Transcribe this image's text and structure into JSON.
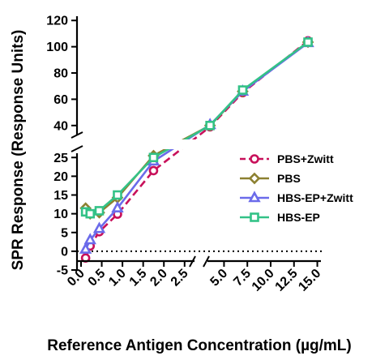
{
  "chart_data": {
    "type": "line",
    "xlabel": "Reference Antigen Concentration (µg/mL)",
    "ylabel": "SPR Response (Response Units)",
    "x_axis": {
      "broken": true,
      "segments": [
        {
          "range": [
            0,
            2.7
          ],
          "ticks": [
            "0.0",
            "0.5",
            "1.0",
            "1.5",
            "2.0",
            "2.5"
          ],
          "tick_values": [
            0,
            0.5,
            1.0,
            1.5,
            2.0,
            2.5
          ]
        },
        {
          "range": [
            3.4,
            15.3
          ],
          "ticks": [
            "5.0",
            "7.5",
            "10.0",
            "12.5",
            "15.0"
          ],
          "tick_values": [
            5,
            7.5,
            10,
            12.5,
            15
          ]
        }
      ]
    },
    "y_axis": {
      "broken": true,
      "segments": [
        {
          "range": [
            -5,
            27
          ],
          "ticks": [
            "-5",
            "0",
            "5",
            "10",
            "15",
            "20",
            "25"
          ],
          "tick_values": [
            -5,
            0,
            5,
            10,
            15,
            20,
            25
          ]
        },
        {
          "range": [
            30,
            122
          ],
          "ticks": [
            "40",
            "60",
            "80",
            "100",
            "120"
          ],
          "tick_values": [
            40,
            60,
            80,
            100,
            120
          ]
        }
      ]
    },
    "reference_line": {
      "y": 0,
      "style": "dotted"
    },
    "legend_position": "right",
    "x": [
      0.11,
      0.22,
      0.44,
      0.88,
      1.75,
      3.5,
      7,
      14
    ],
    "series": [
      {
        "name": "PBS+Zwitt",
        "color": "#c8105a",
        "marker": "circle",
        "line": "dashed",
        "values": [
          -1.8,
          1.4,
          5.2,
          9.9,
          21.5,
          39.0,
          65.0,
          104.5
        ]
      },
      {
        "name": "PBS",
        "color": "#8c8030",
        "marker": "diamond",
        "line": "solid",
        "values": [
          11.5,
          10.0,
          10.3,
          14.3,
          25.5,
          40.0,
          66.0,
          103.5
        ]
      },
      {
        "name": "HBS-EP+Zwitt",
        "color": "#6b6bea",
        "marker": "triangle",
        "line": "solid",
        "values": [
          0.5,
          3.0,
          6.0,
          11.5,
          24.0,
          40.5,
          66.0,
          103.0
        ]
      },
      {
        "name": "HBS-EP",
        "color": "#33c287",
        "marker": "square",
        "line": "solid",
        "values": [
          10.5,
          10.0,
          10.8,
          15.0,
          25.0,
          40.0,
          67.0,
          103.5
        ]
      }
    ]
  }
}
